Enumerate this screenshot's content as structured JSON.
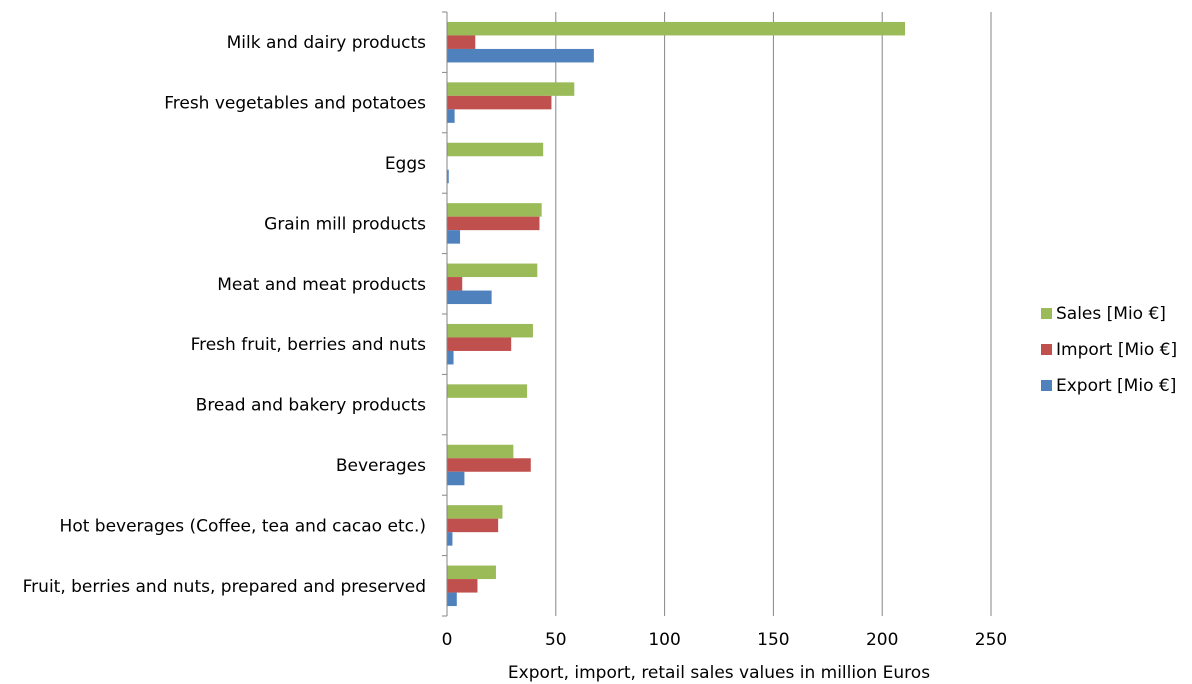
{
  "chart_data": {
    "type": "bar",
    "orientation": "horizontal",
    "categories": [
      "Milk and dairy products",
      "Fresh vegetables and potatoes",
      "Eggs",
      "Grain mill products",
      "Meat and meat products",
      "Fresh fruit, berries and nuts",
      "Bread and bakery products",
      "Beverages",
      "Hot beverages (Coffee, tea and cacao etc.)",
      "Fruit, berries and nuts, prepared and preserved"
    ],
    "series": [
      {
        "name": "Sales [Mio €]",
        "color": "#9BBB59",
        "values": [
          210.5,
          58.5,
          44.2,
          43.5,
          41.5,
          39.5,
          36.8,
          30.5,
          25.5,
          22.5
        ]
      },
      {
        "name": "Import [Mio €]",
        "color": "#C0504D",
        "values": [
          13.0,
          48.0,
          0,
          42.5,
          7.0,
          29.5,
          0,
          38.5,
          23.5,
          14.0
        ]
      },
      {
        "name": "Export [Mio €]",
        "color": "#4F81BD",
        "values": [
          67.5,
          3.5,
          0.8,
          6.0,
          20.5,
          3.0,
          0,
          8.0,
          2.5,
          4.5
        ]
      }
    ],
    "xlabel": "Export, import, retail sales values in million Euros",
    "ylabel": "",
    "xlim": [
      0,
      250
    ],
    "xticks": [
      "0",
      "50",
      "100",
      "150",
      "200",
      "250"
    ],
    "grid": "vertical",
    "legend_position": "right"
  }
}
